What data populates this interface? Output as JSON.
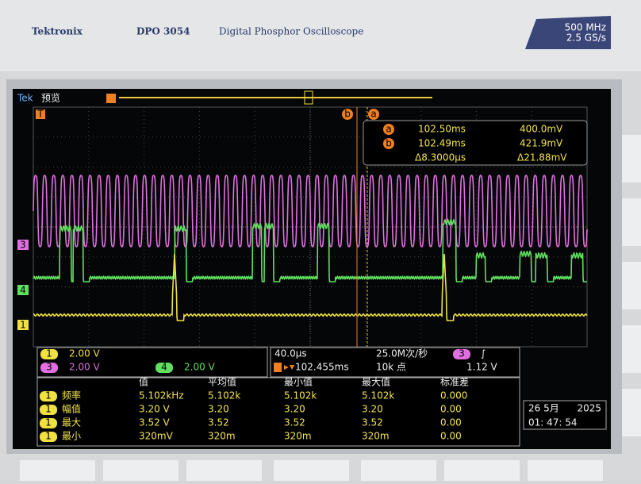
{
  "header": {
    "brand": "Tektronix",
    "model": "DPO 3054",
    "description": "Digital Phosphor Oscilloscope",
    "bandwidth": "500 MHz",
    "sample_rate": "2.5 GS/s"
  },
  "screen": {
    "status": "Tek",
    "mode": "预览",
    "markers": {
      "trigger_position": "T",
      "cursor_b": "b",
      "cursor_a": "a",
      "ch3": "3",
      "ch4": "4",
      "ch1": "1"
    }
  },
  "cursors": {
    "a": {
      "label": "a",
      "time": "102.50ms",
      "voltage": "400.0mV"
    },
    "b": {
      "label": "b",
      "time": "102.49ms",
      "voltage": "421.9mV"
    },
    "delta": {
      "time": "Δ8.3000µs",
      "voltage": "Δ21.88mV"
    }
  },
  "channels": [
    {
      "id": "1",
      "scale": "2.00 V"
    },
    {
      "id": "3",
      "scale": "2.00 V"
    },
    {
      "id": "4",
      "scale": "2.00 V"
    }
  ],
  "timebase": {
    "scale": "40.0µs",
    "sample_rate": "25.0M次/秒",
    "trigger_source": "3",
    "trigger_slope": "∫",
    "trigger_position": "102.455ms",
    "record_length": "10k 点",
    "trigger_level": "1.12 V"
  },
  "measurements": {
    "headers": [
      "值",
      "平均值",
      "最小值",
      "最大值",
      "标准差"
    ],
    "rows": [
      {
        "source": "1",
        "name": "频率",
        "values": [
          "5.102kHz",
          "5.102k",
          "5.102k",
          "5.102k",
          "0.000"
        ]
      },
      {
        "source": "1",
        "name": "幅值",
        "values": [
          "3.20 V",
          "3.20",
          "3.20",
          "3.20",
          "0.00"
        ]
      },
      {
        "source": "1",
        "name": "最大",
        "values": [
          "3.52 V",
          "3.52",
          "3.52",
          "3.52",
          "0.00"
        ]
      },
      {
        "source": "1",
        "name": "最小",
        "values": [
          "320mV",
          "320m",
          "320m",
          "320m",
          "0.00"
        ]
      }
    ]
  },
  "datetime": {
    "date": "26 5月",
    "year": "2025",
    "time": "01: 47: 54"
  }
}
